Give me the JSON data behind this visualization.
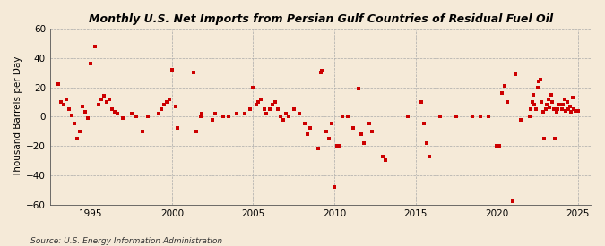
{
  "title": "Monthly U.S. Net Imports from Persian Gulf Countries of Residual Fuel Oil",
  "ylabel": "Thousand Barrels per Day",
  "source": "Source: U.S. Energy Information Administration",
  "ylim": [
    -60,
    60
  ],
  "yticks": [
    -60,
    -40,
    -20,
    0,
    20,
    40,
    60
  ],
  "xlim": [
    1992.5,
    2025.8
  ],
  "xticks": [
    1995,
    2000,
    2005,
    2010,
    2015,
    2020,
    2025
  ],
  "marker_color": "#cc0000",
  "marker_size": 6,
  "bg_color": "#f5ead8",
  "plot_bg": "#f5ead8",
  "data": [
    [
      1993.0,
      22
    ],
    [
      1993.17,
      10
    ],
    [
      1993.33,
      8
    ],
    [
      1993.5,
      12
    ],
    [
      1993.67,
      5
    ],
    [
      1993.83,
      1
    ],
    [
      1994.0,
      -5
    ],
    [
      1994.17,
      -15
    ],
    [
      1994.33,
      -10
    ],
    [
      1994.5,
      7
    ],
    [
      1994.67,
      3
    ],
    [
      1994.83,
      -1
    ],
    [
      1995.0,
      36
    ],
    [
      1995.25,
      48
    ],
    [
      1995.5,
      8
    ],
    [
      1995.67,
      12
    ],
    [
      1995.83,
      14
    ],
    [
      1996.0,
      10
    ],
    [
      1996.17,
      12
    ],
    [
      1996.33,
      5
    ],
    [
      1996.5,
      3
    ],
    [
      1996.67,
      2
    ],
    [
      1997.0,
      -1
    ],
    [
      1997.5,
      2
    ],
    [
      1997.83,
      0
    ],
    [
      1998.17,
      -10
    ],
    [
      1998.5,
      0
    ],
    [
      1999.17,
      2
    ],
    [
      1999.33,
      5
    ],
    [
      1999.5,
      8
    ],
    [
      1999.67,
      10
    ],
    [
      1999.83,
      12
    ],
    [
      2000.0,
      32
    ],
    [
      2000.25,
      7
    ],
    [
      2000.33,
      -8
    ],
    [
      2001.33,
      30
    ],
    [
      2001.5,
      -10
    ],
    [
      2001.75,
      0
    ],
    [
      2001.83,
      2
    ],
    [
      2002.5,
      -2
    ],
    [
      2002.67,
      2
    ],
    [
      2003.17,
      0
    ],
    [
      2003.5,
      0
    ],
    [
      2004.0,
      2
    ],
    [
      2004.5,
      2
    ],
    [
      2004.83,
      5
    ],
    [
      2005.0,
      20
    ],
    [
      2005.17,
      8
    ],
    [
      2005.33,
      10
    ],
    [
      2005.5,
      12
    ],
    [
      2005.67,
      5
    ],
    [
      2005.83,
      2
    ],
    [
      2006.0,
      5
    ],
    [
      2006.17,
      8
    ],
    [
      2006.33,
      10
    ],
    [
      2006.5,
      5
    ],
    [
      2006.67,
      0
    ],
    [
      2006.83,
      -2
    ],
    [
      2007.0,
      2
    ],
    [
      2007.17,
      0
    ],
    [
      2007.5,
      5
    ],
    [
      2007.83,
      2
    ],
    [
      2008.17,
      -5
    ],
    [
      2008.33,
      -12
    ],
    [
      2008.5,
      -8
    ],
    [
      2009.0,
      -22
    ],
    [
      2009.17,
      30
    ],
    [
      2009.25,
      31
    ],
    [
      2009.5,
      -10
    ],
    [
      2009.67,
      -15
    ],
    [
      2009.83,
      -5
    ],
    [
      2010.0,
      -48
    ],
    [
      2010.17,
      -20
    ],
    [
      2010.25,
      -20
    ],
    [
      2010.5,
      0
    ],
    [
      2010.83,
      0
    ],
    [
      2011.17,
      -8
    ],
    [
      2011.5,
      19
    ],
    [
      2011.67,
      -12
    ],
    [
      2011.83,
      -18
    ],
    [
      2012.17,
      -5
    ],
    [
      2012.33,
      -10
    ],
    [
      2013.0,
      -27
    ],
    [
      2013.17,
      -30
    ],
    [
      2014.5,
      0
    ],
    [
      2015.33,
      10
    ],
    [
      2015.5,
      -5
    ],
    [
      2015.67,
      -18
    ],
    [
      2015.83,
      -27
    ],
    [
      2016.5,
      0
    ],
    [
      2017.5,
      0
    ],
    [
      2018.5,
      0
    ],
    [
      2019.0,
      0
    ],
    [
      2019.5,
      0
    ],
    [
      2020.0,
      -20
    ],
    [
      2020.17,
      -20
    ],
    [
      2020.33,
      16
    ],
    [
      2020.5,
      21
    ],
    [
      2020.67,
      10
    ],
    [
      2021.0,
      -58
    ],
    [
      2021.17,
      29
    ],
    [
      2021.5,
      -2
    ],
    [
      2022.0,
      0
    ],
    [
      2022.08,
      5
    ],
    [
      2022.17,
      10
    ],
    [
      2022.25,
      15
    ],
    [
      2022.33,
      8
    ],
    [
      2022.42,
      5
    ],
    [
      2022.5,
      20
    ],
    [
      2022.58,
      24
    ],
    [
      2022.67,
      25
    ],
    [
      2022.75,
      10
    ],
    [
      2022.83,
      3
    ],
    [
      2022.92,
      -15
    ],
    [
      2023.0,
      5
    ],
    [
      2023.08,
      8
    ],
    [
      2023.17,
      12
    ],
    [
      2023.25,
      6
    ],
    [
      2023.33,
      15
    ],
    [
      2023.42,
      10
    ],
    [
      2023.5,
      5
    ],
    [
      2023.58,
      -15
    ],
    [
      2023.67,
      3
    ],
    [
      2023.75,
      5
    ],
    [
      2023.83,
      8
    ],
    [
      2024.0,
      5
    ],
    [
      2024.08,
      8
    ],
    [
      2024.17,
      12
    ],
    [
      2024.25,
      4
    ],
    [
      2024.33,
      10
    ],
    [
      2024.42,
      5
    ],
    [
      2024.5,
      7
    ],
    [
      2024.58,
      3
    ],
    [
      2024.67,
      13
    ],
    [
      2024.75,
      5
    ],
    [
      2024.83,
      4
    ],
    [
      2025.0,
      4
    ]
  ]
}
